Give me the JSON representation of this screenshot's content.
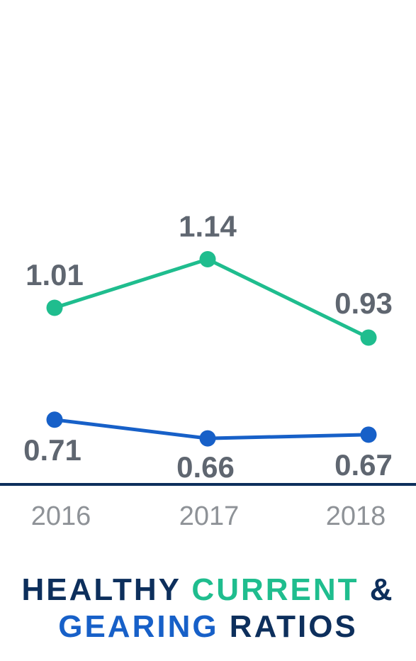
{
  "colors": {
    "current": "#1fbd8e",
    "gearing": "#1760c8",
    "navy": "#0d2f5c",
    "value_text": "#5f6670",
    "tick_text": "#8e9297"
  },
  "title": {
    "part1": "HEALTHY ",
    "part2": "CURRENT",
    "part3": " &",
    "part4": "GEARING",
    "part5": " RATIOS"
  },
  "chart_data": {
    "type": "line",
    "categories": [
      "2016",
      "2017",
      "2018"
    ],
    "series": [
      {
        "key": "current",
        "values": [
          1.01,
          1.14,
          0.93
        ],
        "labels": [
          "1.01",
          "1.14",
          "0.93"
        ],
        "color": "#1fbd8e",
        "label_position": "above"
      },
      {
        "key": "gearing",
        "values": [
          0.71,
          0.66,
          0.67
        ],
        "labels": [
          "0.71",
          "0.66",
          "0.67"
        ],
        "color": "#1760c8",
        "label_position": "below"
      }
    ],
    "ylim": [
      0,
      1.6
    ],
    "grid": false,
    "legend": "none",
    "title": "HEALTHY CURRENT & GEARING RATIOS",
    "xlabel": "",
    "ylabel": ""
  }
}
